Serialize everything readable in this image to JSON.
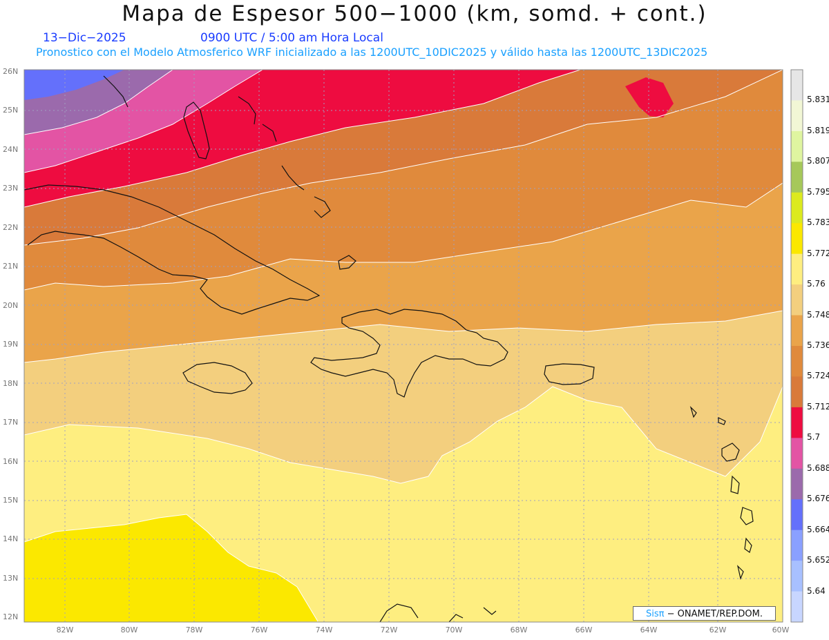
{
  "header": {
    "title": "Mapa de Espesor 500−1000 (km, somd. + cont.)",
    "date": "13−Dic−2025",
    "time": "0900 UTC / 5:00 am Hora Local",
    "subtitle": "Pronostico con el Modelo Atmosferico WRF inicializado a las 1200UTC_10DIC2025 y válido hasta las  1200UTC_13DIC2025"
  },
  "axes": {
    "lat_labels": [
      "26N",
      "25N",
      "24N",
      "23N",
      "22N",
      "21N",
      "20N",
      "19N",
      "18N",
      "17N",
      "16N",
      "15N",
      "14N",
      "13N",
      "12N"
    ],
    "lon_labels": [
      "82W",
      "80W",
      "78W",
      "76W",
      "74W",
      "72W",
      "70W",
      "68W",
      "66W",
      "64W",
      "62W",
      "60W"
    ]
  },
  "colorbar": {
    "levels": [
      "5.831",
      "5.819",
      "5.807",
      "5.795",
      "5.783",
      "5.772",
      "5.76",
      "5.748",
      "5.736",
      "5.724",
      "5.712",
      "5.7",
      "5.688",
      "5.676",
      "5.664",
      "5.652",
      "5.64"
    ],
    "colors": [
      "#e6e6e6",
      "#f2f7d5",
      "#dff5a0",
      "#a6c85a",
      "#dcea1e",
      "#fbe800",
      "#feee80",
      "#f3cf7e",
      "#eaa44a",
      "#e08a3c",
      "#d97a3a",
      "#ee0c40",
      "#e354a4",
      "#9b6aac",
      "#6470fb",
      "#8aa0ff",
      "#a8c0ff",
      "#c8d6ff"
    ]
  },
  "credit": {
    "brand": "Sisπ",
    "org": " − ONAMET/REP.DOM."
  }
}
